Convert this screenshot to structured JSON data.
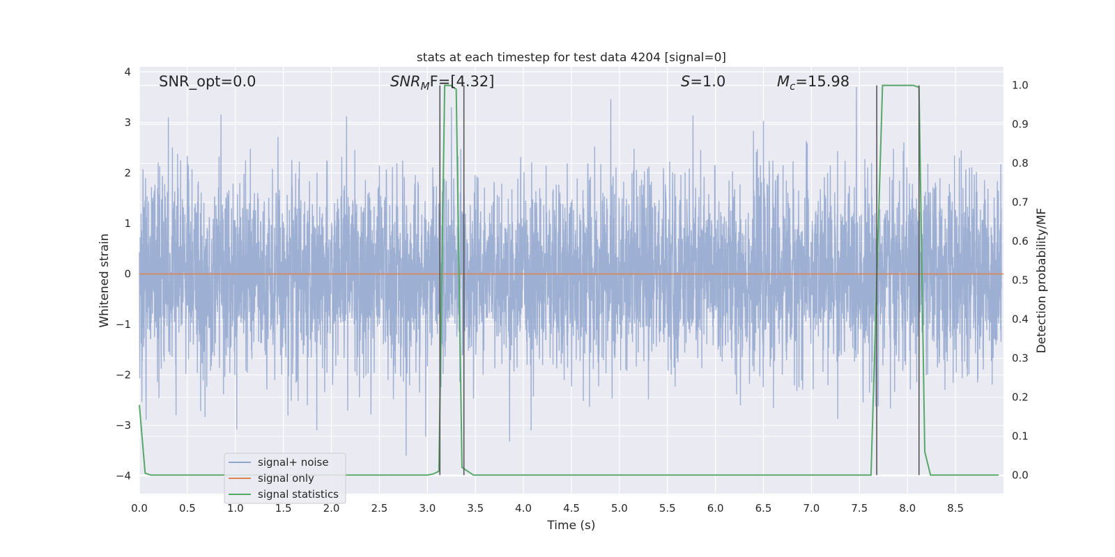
{
  "chart_data": {
    "type": "line",
    "title": "stats at each timestep for test data 4204 [signal=0]",
    "xlabel": "Time (s)",
    "ylabel": "Whitened strain",
    "y2label": "Detection probability/MF",
    "xlim": [
      0.0,
      9.0
    ],
    "ylim": [
      -4.35,
      4.1
    ],
    "y2lim": [
      -0.0475,
      1.0475
    ],
    "xticks": [
      "0.0",
      "0.5",
      "1.0",
      "1.5",
      "2.0",
      "2.5",
      "3.0",
      "3.5",
      "4.0",
      "4.5",
      "5.0",
      "5.5",
      "6.0",
      "6.5",
      "7.0",
      "7.5",
      "8.0",
      "8.5"
    ],
    "yticks": [
      "4",
      "3",
      "2",
      "1",
      "0",
      "−1",
      "−2",
      "−3",
      "−4"
    ],
    "y2ticks": [
      "1.0",
      "0.9",
      "0.8",
      "0.7",
      "0.6",
      "0.5",
      "0.4",
      "0.3",
      "0.2",
      "0.1",
      "0.0"
    ],
    "grid": true,
    "legend_position": "lower-left",
    "annotations": {
      "snr_opt": "SNR_opt=0.0",
      "snr_mf_main": "SNR",
      "snr_mf_sub": "M",
      "snr_mf_tail": "F=[4.32]",
      "s_main": "S",
      "s_tail": "=1.0",
      "mc_main": "M",
      "mc_sub": "c",
      "mc_tail": "=15.98"
    },
    "series": [
      {
        "name": "signal+ noise",
        "color": "#8fa4cc",
        "axis": "left",
        "sample_rate_hz": 500,
        "description_values": "random noise between about -3.6 and 3.7"
      },
      {
        "name": "signal only",
        "color": "#dd8452",
        "axis": "left",
        "x": [
          0.0,
          9.0
        ],
        "y": [
          0.0,
          0.0
        ]
      },
      {
        "name": "signal statistics",
        "color": "#55a868",
        "axis": "right",
        "x": [
          0.0,
          0.06,
          0.12,
          0.5,
          1.0,
          1.5,
          2.0,
          2.5,
          3.0,
          3.06,
          3.12,
          3.18,
          3.24,
          3.3,
          3.36,
          3.42,
          3.48,
          4.0,
          5.0,
          6.0,
          7.0,
          7.5,
          7.62,
          7.68,
          7.74,
          7.8,
          7.9,
          8.0,
          8.06,
          8.12,
          8.18,
          8.24,
          8.5,
          8.95
        ],
        "y": [
          0.18,
          0.005,
          0.0,
          0.0,
          0.0,
          0.0,
          0.0,
          0.0,
          0.0,
          0.003,
          0.01,
          1.0,
          1.0,
          0.99,
          0.02,
          0.01,
          0.0,
          0.0,
          0.0,
          0.0,
          0.0,
          0.0,
          0.0,
          0.5,
          1.0,
          1.0,
          1.0,
          1.0,
          1.0,
          0.995,
          0.06,
          0.0,
          0.0,
          0.0
        ]
      }
    ],
    "vertical_markers": {
      "color": "#555555",
      "x": [
        3.13,
        3.38,
        7.68,
        8.12
      ],
      "y_top": 1.0,
      "y_bottom": 0.0
    }
  }
}
